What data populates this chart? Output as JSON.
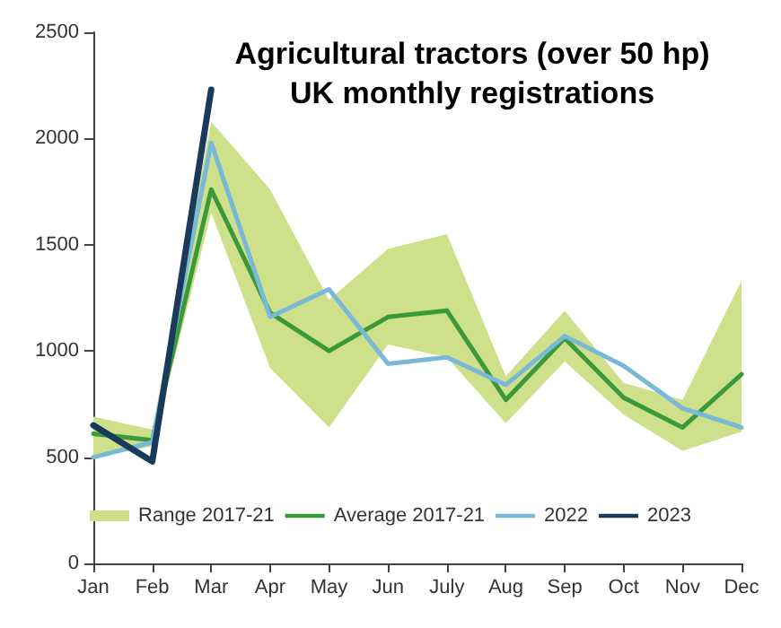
{
  "chart_data": {
    "type": "line",
    "title": "Agricultural tractors (over 50 hp)\nUK monthly registrations",
    "categories": [
      "Jan",
      "Feb",
      "Mar",
      "Apr",
      "May",
      "Jun",
      "July",
      "Aug",
      "Sep",
      "Oct",
      "Nov",
      "Dec"
    ],
    "series": [
      {
        "name": "Range 2017-21",
        "type": "area",
        "color": "#cfe08a",
        "values": [
          null,
          null,
          null,
          null,
          null,
          null,
          null,
          null,
          null,
          null,
          null,
          null
        ]
      },
      {
        "name": "Average 2017-21",
        "color": "#3a9a3a",
        "values": [
          610,
          580,
          1760,
          1180,
          1000,
          1160,
          1190,
          770,
          1060,
          780,
          640,
          890
        ],
        "lower": [
          500,
          550,
          1650,
          920,
          640,
          1030,
          970,
          660,
          950,
          700,
          530,
          620
        ],
        "upper": [
          690,
          630,
          2080,
          1760,
          1240,
          1480,
          1550,
          880,
          1190,
          850,
          770,
          1330
        ]
      },
      {
        "name": "2022",
        "color": "#7ab8d8",
        "values": [
          500,
          570,
          1980,
          1160,
          1290,
          940,
          970,
          840,
          1070,
          930,
          730,
          640
        ]
      },
      {
        "name": "2023",
        "color": "#1a3a5c",
        "values": [
          650,
          480,
          2230,
          null,
          null,
          null,
          null,
          null,
          null,
          null,
          null,
          null
        ]
      }
    ],
    "ylim": [
      0,
      2500
    ],
    "yticks": [
      0,
      500,
      1000,
      1500,
      2000,
      2500
    ],
    "grid": false,
    "legend": "bottom",
    "marker": "none",
    "line_style": "solid"
  }
}
